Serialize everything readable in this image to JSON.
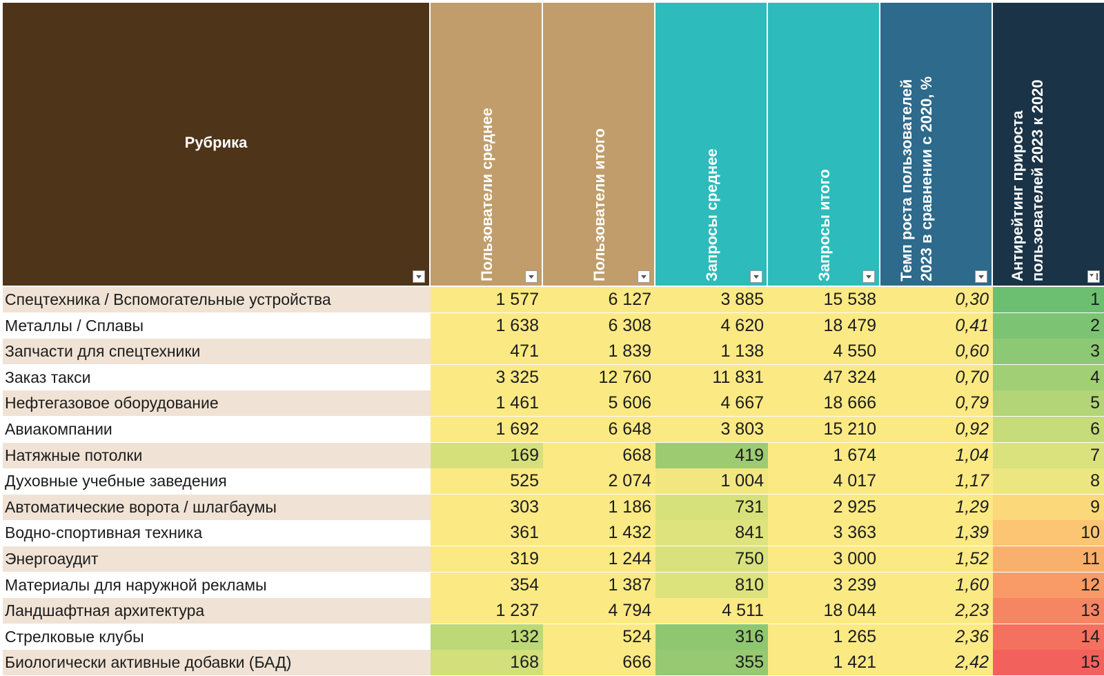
{
  "colors": {
    "rubrika_header": "#4e3418",
    "users_header": "#c09d6b",
    "requests_header": "#2dbbbb",
    "growth_header": "#2d6a8c",
    "antirating_header": "#1b3346",
    "row_band_odd": "#f0e3d5",
    "row_band_even": "#ffffff",
    "yellow": "#fbe984",
    "light_green": "#d7e17b",
    "green": "#9dcb72"
  },
  "table": {
    "headers": {
      "rubrika": "Рубрика",
      "users_avg": "Пользователи среднее",
      "users_total": "Пользователи итого",
      "requests_avg": "Запросы среднее",
      "requests_total": "Запросы итого",
      "growth_rate_line1": "Темп роста пользователей",
      "growth_rate_line2": "2023 в сравнении с 2020, %",
      "antirating_line1": "Антирейтинг прироста",
      "antirating_line2": "пользователей 2023 к 2020"
    },
    "rows": [
      {
        "name": "Спецтехника / Вспомогательные устройства",
        "users_avg": "1 577",
        "users_total": "6 127",
        "requests_avg": "3 885",
        "requests_total": "15 538",
        "growth": "0,30",
        "rank": "1",
        "fill": {
          "users_avg": "#fbe984",
          "users_total": "#fbe984",
          "requests_avg": "#fbe984",
          "requests_total": "#fbe984",
          "growth": "#fbe984",
          "rank": "#6cbf71"
        }
      },
      {
        "name": "Металлы / Сплавы",
        "users_avg": "1 638",
        "users_total": "6 308",
        "requests_avg": "4 620",
        "requests_total": "18 479",
        "growth": "0,41",
        "rank": "2",
        "fill": {
          "users_avg": "#fbe984",
          "users_total": "#fbe984",
          "requests_avg": "#fbe984",
          "requests_total": "#fbe984",
          "growth": "#fbe984",
          "rank": "#7cc473"
        }
      },
      {
        "name": "Запчасти для спецтехники",
        "users_avg": "471",
        "users_total": "1 839",
        "requests_avg": "1 138",
        "requests_total": "4 550",
        "growth": "0,60",
        "rank": "3",
        "fill": {
          "users_avg": "#fbe984",
          "users_total": "#fbe984",
          "requests_avg": "#fbe984",
          "requests_total": "#fbe984",
          "growth": "#fbe984",
          "rank": "#8dc974"
        }
      },
      {
        "name": "Заказ такси",
        "users_avg": "3 325",
        "users_total": "12 760",
        "requests_avg": "11 831",
        "requests_total": "47 324",
        "growth": "0,70",
        "rank": "4",
        "fill": {
          "users_avg": "#fbe984",
          "users_total": "#fbe984",
          "requests_avg": "#fbe984",
          "requests_total": "#fbe984",
          "growth": "#fbe984",
          "rank": "#a0cf76"
        }
      },
      {
        "name": "Нефтегазовое оборудование",
        "users_avg": "1 461",
        "users_total": "5 606",
        "requests_avg": "4 667",
        "requests_total": "18 666",
        "growth": "0,79",
        "rank": "5",
        "fill": {
          "users_avg": "#fbe984",
          "users_total": "#fbe984",
          "requests_avg": "#fbe984",
          "requests_total": "#fbe984",
          "growth": "#fbe984",
          "rank": "#b3d578"
        }
      },
      {
        "name": "Авиакомпании",
        "users_avg": "1 692",
        "users_total": "6 648",
        "requests_avg": "3 803",
        "requests_total": "15 210",
        "growth": "0,92",
        "rank": "6",
        "fill": {
          "users_avg": "#fbe984",
          "users_total": "#fbe984",
          "requests_avg": "#fbe984",
          "requests_total": "#fbe984",
          "growth": "#fbe984",
          "rank": "#c6db7a"
        }
      },
      {
        "name": "Натяжные потолки",
        "users_avg": "169",
        "users_total": "668",
        "requests_avg": "419",
        "requests_total": "1 674",
        "growth": "1,04",
        "rank": "7",
        "fill": {
          "users_avg": "#d5e07b",
          "users_total": "#fbe984",
          "requests_avg": "#9dcb72",
          "requests_total": "#fbe984",
          "growth": "#fbe984",
          "rank": "#d9e27c"
        }
      },
      {
        "name": "Духовные учебные заведения",
        "users_avg": "525",
        "users_total": "2 074",
        "requests_avg": "1 004",
        "requests_total": "4 017",
        "growth": "1,17",
        "rank": "8",
        "fill": {
          "users_avg": "#fbe984",
          "users_total": "#fbe984",
          "requests_avg": "#f2e681",
          "requests_total": "#fbe984",
          "growth": "#fbe984",
          "rank": "#ebe67f"
        }
      },
      {
        "name": "Автоматические ворота / шлагбаумы",
        "users_avg": "303",
        "users_total": "1 186",
        "requests_avg": "731",
        "requests_total": "2 925",
        "growth": "1,29",
        "rank": "9",
        "fill": {
          "users_avg": "#fbe984",
          "users_total": "#fbe984",
          "requests_avg": "#d7e17b",
          "requests_total": "#fbe984",
          "growth": "#fbe984",
          "rank": "#fbd97b"
        }
      },
      {
        "name": "Водно-спортивная техника",
        "users_avg": "361",
        "users_total": "1 432",
        "requests_avg": "841",
        "requests_total": "3 363",
        "growth": "1,39",
        "rank": "10",
        "fill": {
          "users_avg": "#fbe984",
          "users_total": "#fbe984",
          "requests_avg": "#dfe37d",
          "requests_total": "#fbe984",
          "growth": "#fbe984",
          "rank": "#fbc574"
        }
      },
      {
        "name": "Энергоаудит",
        "users_avg": "319",
        "users_total": "1 244",
        "requests_avg": "750",
        "requests_total": "3 000",
        "growth": "1,52",
        "rank": "11",
        "fill": {
          "users_avg": "#fbe984",
          "users_total": "#fbe984",
          "requests_avg": "#d8e17b",
          "requests_total": "#fbe984",
          "growth": "#fbe984",
          "rank": "#f9b06d"
        }
      },
      {
        "name": "Материалы для наружной рекламы",
        "users_avg": "354",
        "users_total": "1 387",
        "requests_avg": "810",
        "requests_total": "3 239",
        "growth": "1,60",
        "rank": "12",
        "fill": {
          "users_avg": "#fbe984",
          "users_total": "#fbe984",
          "requests_avg": "#dce27c",
          "requests_total": "#fbe984",
          "growth": "#fbe984",
          "rank": "#f89b67"
        }
      },
      {
        "name": "Ландшафтная архитектура",
        "users_avg": "1 237",
        "users_total": "4 794",
        "requests_avg": "4 511",
        "requests_total": "18 044",
        "growth": "2,23",
        "rank": "13",
        "fill": {
          "users_avg": "#fbe984",
          "users_total": "#fbe984",
          "requests_avg": "#fbe984",
          "requests_total": "#fbe984",
          "growth": "#fbe984",
          "rank": "#f68663"
        }
      },
      {
        "name": "Стрелковые клубы",
        "users_avg": "132",
        "users_total": "524",
        "requests_avg": "316",
        "requests_total": "1 265",
        "growth": "2,36",
        "rank": "14",
        "fill": {
          "users_avg": "#bcd877",
          "users_total": "#fbe984",
          "requests_avg": "#8fc770",
          "requests_total": "#fbe984",
          "growth": "#fbe984",
          "rank": "#f4705f"
        }
      },
      {
        "name": "Биологически активные добавки (БАД)",
        "users_avg": "168",
        "users_total": "666",
        "requests_avg": "355",
        "requests_total": "1 421",
        "growth": "2,42",
        "rank": "15",
        "fill": {
          "users_avg": "#d2df7a",
          "users_total": "#fbe984",
          "requests_avg": "#96c971",
          "requests_total": "#fbe984",
          "growth": "#fbe984",
          "rank": "#f2615c"
        }
      }
    ]
  }
}
